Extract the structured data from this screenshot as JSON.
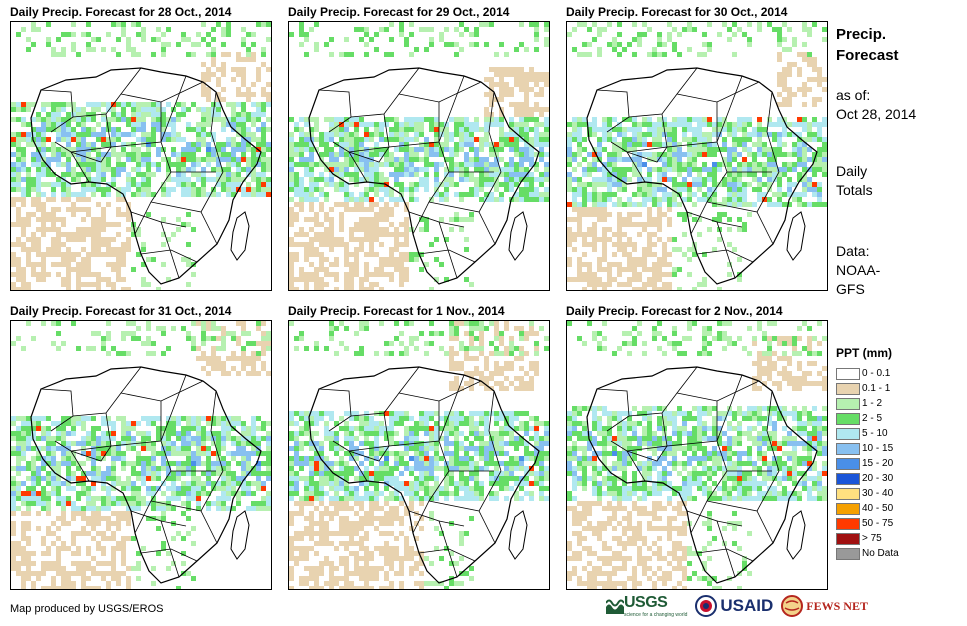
{
  "panels": [
    {
      "title": "Daily Precip. Forecast for 28  Oct., 2014"
    },
    {
      "title": "Daily Precip. Forecast for 29  Oct., 2014"
    },
    {
      "title": "Daily Precip. Forecast for 30  Oct., 2014"
    },
    {
      "title": "Daily Precip. Forecast for 31  Oct., 2014"
    },
    {
      "title": "Daily Precip. Forecast for 1 Nov., 2014"
    },
    {
      "title": "Daily Precip. Forecast for 2 Nov., 2014"
    }
  ],
  "side": {
    "title1": "Precip.",
    "title2": "Forecast",
    "asof1": "as of:",
    "asof2": "Oct 28, 2014",
    "daily1": "Daily",
    "daily2": "Totals",
    "data1": "Data:",
    "data2": "NOAA-",
    "data3": "GFS"
  },
  "legend": {
    "title": "PPT (mm)",
    "items": [
      {
        "label": "0 - 0.1",
        "color": "#ffffff"
      },
      {
        "label": "0.1 - 1",
        "color": "#e8d3b0"
      },
      {
        "label": "1 - 2",
        "color": "#b6f0b0"
      },
      {
        "label": "2 - 5",
        "color": "#66dd66"
      },
      {
        "label": "5 - 10",
        "color": "#b0e8f0"
      },
      {
        "label": "10 - 15",
        "color": "#88c0f0"
      },
      {
        "label": "15 - 20",
        "color": "#4a8fe8"
      },
      {
        "label": "20 - 30",
        "color": "#1a55d8"
      },
      {
        "label": "30 - 40",
        "color": "#ffe080"
      },
      {
        "label": "40 - 50",
        "color": "#f5a000"
      },
      {
        "label": "50 - 75",
        "color": "#ff3a00"
      },
      {
        "label": "> 75",
        "color": "#a01010"
      },
      {
        "label": "No Data",
        "color": "#999999"
      }
    ]
  },
  "credit": "Map produced by USGS/EROS",
  "logos": {
    "usgs": "USGS",
    "usgs_tagline": "science for a changing world",
    "usaid": "USAID",
    "fews": "FEWS NET"
  }
}
